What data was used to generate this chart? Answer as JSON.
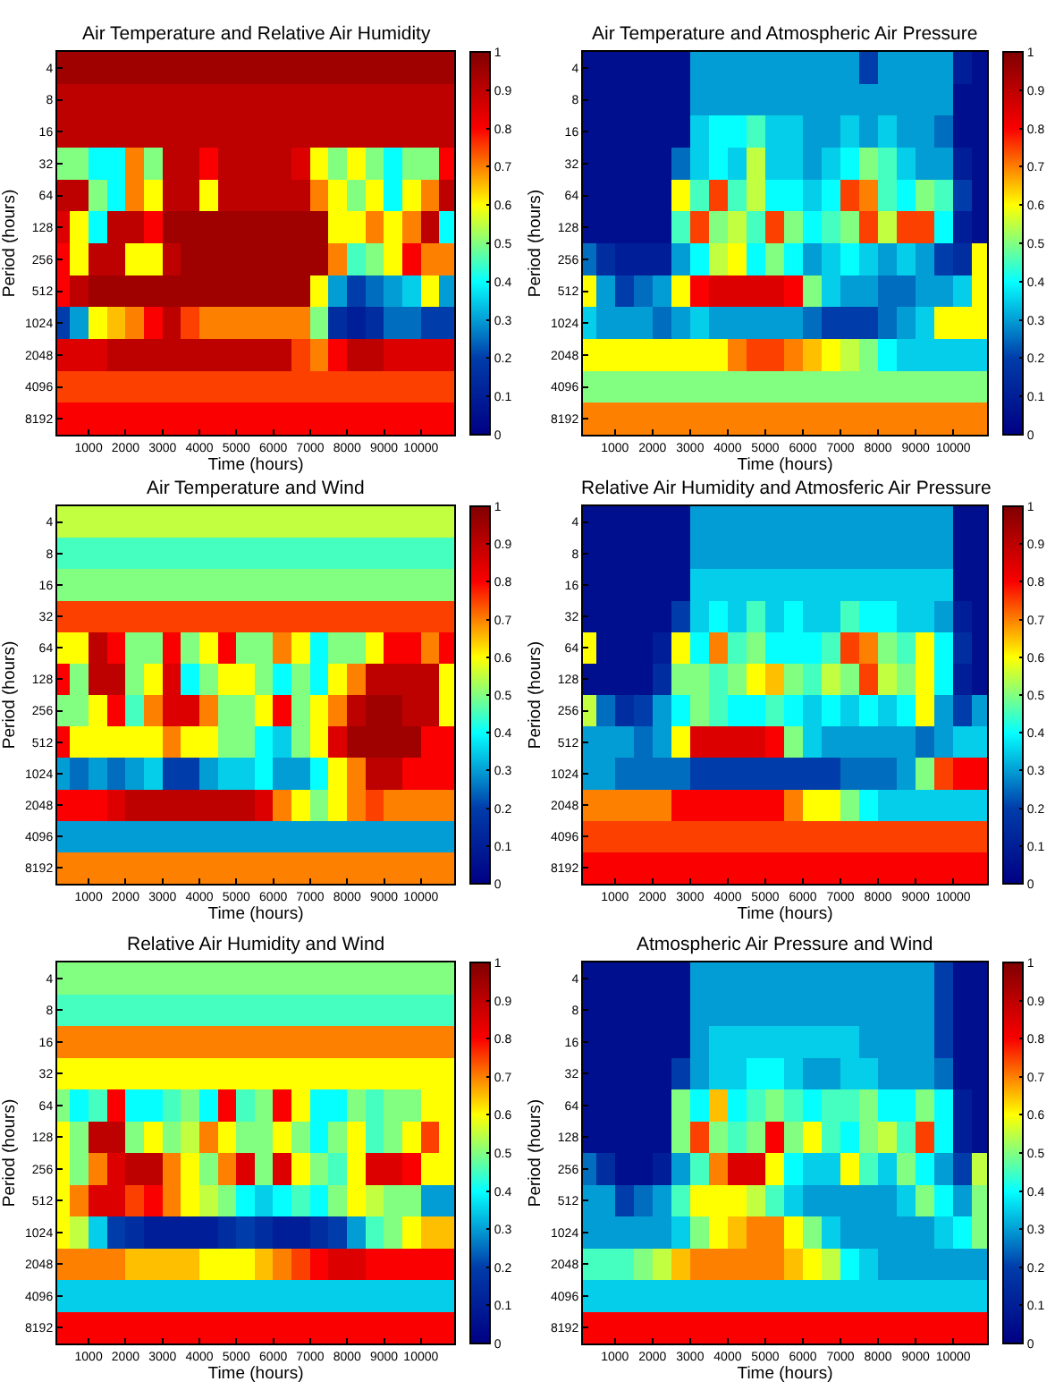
{
  "chart_data": [
    {
      "type": "heatmap",
      "title": "Air Temperature and Relative Air Humidity",
      "xlabel": "Time (hours)",
      "ylabel": "Period (hours)",
      "x": [
        250,
        750,
        1250,
        1750,
        2250,
        2750,
        3250,
        3750,
        4250,
        4750,
        5250,
        5750,
        6250,
        6750,
        7250,
        7750,
        8250,
        8750,
        9250,
        9750,
        10250,
        10750
      ],
      "xlim": [
        150,
        10900
      ],
      "xticks": [
        1000,
        2000,
        3000,
        4000,
        5000,
        6000,
        7000,
        8000,
        9000,
        10000
      ],
      "y_categories": [
        "4",
        "8",
        "16",
        "32",
        "64",
        "128",
        "256",
        "512",
        "1024",
        "2048",
        "4096",
        "8192"
      ],
      "clim": [
        0,
        1
      ],
      "cticks": [
        0,
        0.1,
        0.2,
        0.3,
        0.4,
        0.5,
        0.6,
        0.7,
        0.8,
        0.9,
        1
      ],
      "cells": [
        [
          0.95,
          0.95,
          0.95,
          0.95,
          0.95,
          0.95,
          0.95,
          0.95,
          0.95,
          0.95,
          0.95,
          0.95,
          0.95,
          0.95,
          0.95,
          0.95,
          0.95,
          0.95,
          0.95,
          0.95,
          0.95,
          0.95
        ],
        [
          0.9,
          0.9,
          0.9,
          0.9,
          0.9,
          0.9,
          0.9,
          0.9,
          0.9,
          0.9,
          0.9,
          0.9,
          0.9,
          0.9,
          0.9,
          0.9,
          0.9,
          0.9,
          0.9,
          0.9,
          0.9,
          0.9
        ],
        [
          0.9,
          0.9,
          0.9,
          0.9,
          0.9,
          0.9,
          0.9,
          0.9,
          0.9,
          0.9,
          0.9,
          0.9,
          0.9,
          0.9,
          0.9,
          0.9,
          0.9,
          0.9,
          0.9,
          0.9,
          0.9,
          0.9
        ],
        [
          0.5,
          0.5,
          0.4,
          0.4,
          0.7,
          0.5,
          0.9,
          0.9,
          0.8,
          0.9,
          0.9,
          0.9,
          0.9,
          0.85,
          0.6,
          0.5,
          0.6,
          0.5,
          0.4,
          0.5,
          0.5,
          0.8
        ],
        [
          0.9,
          0.9,
          0.5,
          0.4,
          0.7,
          0.6,
          0.9,
          0.9,
          0.6,
          0.9,
          0.9,
          0.9,
          0.9,
          0.9,
          0.7,
          0.6,
          0.5,
          0.6,
          0.4,
          0.6,
          0.7,
          0.9
        ],
        [
          0.85,
          0.6,
          0.4,
          0.9,
          0.9,
          0.8,
          0.95,
          0.95,
          0.95,
          0.95,
          0.95,
          0.95,
          0.95,
          0.95,
          0.95,
          0.6,
          0.6,
          0.7,
          0.6,
          0.7,
          0.9,
          0.4
        ],
        [
          0.8,
          0.6,
          0.9,
          0.9,
          0.6,
          0.6,
          0.9,
          0.95,
          0.95,
          0.95,
          0.95,
          0.95,
          0.95,
          0.95,
          0.95,
          0.7,
          0.45,
          0.5,
          0.6,
          0.8,
          0.7,
          0.7
        ],
        [
          0.8,
          0.9,
          0.95,
          0.95,
          0.95,
          0.95,
          0.95,
          0.95,
          0.95,
          0.95,
          0.95,
          0.95,
          0.95,
          0.95,
          0.6,
          0.3,
          0.2,
          0.25,
          0.3,
          0.35,
          0.6,
          0.3
        ],
        [
          0.2,
          0.3,
          0.6,
          0.65,
          0.7,
          0.8,
          0.9,
          0.75,
          0.7,
          0.7,
          0.7,
          0.7,
          0.7,
          0.7,
          0.5,
          0.15,
          0.1,
          0.15,
          0.25,
          0.25,
          0.2,
          0.2
        ],
        [
          0.85,
          0.85,
          0.85,
          0.9,
          0.9,
          0.9,
          0.9,
          0.9,
          0.9,
          0.9,
          0.9,
          0.9,
          0.9,
          0.75,
          0.7,
          0.8,
          0.9,
          0.9,
          0.85,
          0.85,
          0.85,
          0.85
        ],
        [
          0.75,
          0.75,
          0.75,
          0.75,
          0.75,
          0.75,
          0.75,
          0.75,
          0.75,
          0.75,
          0.75,
          0.75,
          0.75,
          0.75,
          0.75,
          0.75,
          0.75,
          0.75,
          0.75,
          0.75,
          0.75,
          0.75
        ],
        [
          0.8,
          0.8,
          0.8,
          0.8,
          0.8,
          0.8,
          0.8,
          0.8,
          0.8,
          0.8,
          0.8,
          0.8,
          0.8,
          0.8,
          0.8,
          0.8,
          0.8,
          0.8,
          0.8,
          0.8,
          0.8,
          0.8
        ]
      ]
    },
    {
      "type": "heatmap",
      "title": "Air Temperature and Atmospheric Air Pressure",
      "xlabel": "Time (hours)",
      "ylabel": "Period (hours)",
      "x": [
        250,
        750,
        1250,
        1750,
        2250,
        2750,
        3250,
        3750,
        4250,
        4750,
        5250,
        5750,
        6250,
        6750,
        7250,
        7750,
        8250,
        8750,
        9250,
        9750,
        10250,
        10750
      ],
      "xlim": [
        150,
        10900
      ],
      "xticks": [
        1000,
        2000,
        3000,
        4000,
        5000,
        6000,
        7000,
        8000,
        9000,
        10000
      ],
      "y_categories": [
        "4",
        "8",
        "16",
        "32",
        "64",
        "128",
        "256",
        "512",
        "1024",
        "2048",
        "4096",
        "8192"
      ],
      "clim": [
        0,
        1
      ],
      "cticks": [
        0,
        0.1,
        0.2,
        0.3,
        0.4,
        0.5,
        0.6,
        0.7,
        0.8,
        0.9,
        1
      ],
      "cells": [
        [
          0.05,
          0.05,
          0.05,
          0.05,
          0.05,
          0.05,
          0.3,
          0.3,
          0.3,
          0.3,
          0.3,
          0.3,
          0.3,
          0.3,
          0.3,
          0.2,
          0.3,
          0.3,
          0.3,
          0.3,
          0.1,
          0.05
        ],
        [
          0.05,
          0.05,
          0.05,
          0.05,
          0.05,
          0.05,
          0.3,
          0.3,
          0.3,
          0.3,
          0.3,
          0.3,
          0.3,
          0.3,
          0.3,
          0.3,
          0.3,
          0.3,
          0.3,
          0.3,
          0.05,
          0.05
        ],
        [
          0.05,
          0.05,
          0.05,
          0.05,
          0.05,
          0.05,
          0.35,
          0.4,
          0.4,
          0.45,
          0.35,
          0.35,
          0.3,
          0.3,
          0.35,
          0.3,
          0.35,
          0.3,
          0.3,
          0.25,
          0.05,
          0.05
        ],
        [
          0.05,
          0.05,
          0.05,
          0.05,
          0.05,
          0.25,
          0.35,
          0.4,
          0.35,
          0.55,
          0.35,
          0.35,
          0.3,
          0.35,
          0.4,
          0.5,
          0.45,
          0.35,
          0.3,
          0.3,
          0.1,
          0.05
        ],
        [
          0.05,
          0.05,
          0.05,
          0.05,
          0.05,
          0.6,
          0.45,
          0.75,
          0.45,
          0.55,
          0.4,
          0.4,
          0.35,
          0.4,
          0.75,
          0.7,
          0.45,
          0.4,
          0.5,
          0.45,
          0.2,
          0.05
        ],
        [
          0.05,
          0.05,
          0.05,
          0.05,
          0.05,
          0.45,
          0.75,
          0.5,
          0.55,
          0.45,
          0.75,
          0.5,
          0.4,
          0.45,
          0.5,
          0.75,
          0.55,
          0.75,
          0.75,
          0.4,
          0.1,
          0.05
        ],
        [
          0.25,
          0.15,
          0.1,
          0.1,
          0.1,
          0.3,
          0.4,
          0.55,
          0.6,
          0.4,
          0.5,
          0.4,
          0.3,
          0.35,
          0.4,
          0.35,
          0.3,
          0.35,
          0.3,
          0.2,
          0.15,
          0.6
        ],
        [
          0.6,
          0.3,
          0.2,
          0.25,
          0.3,
          0.6,
          0.8,
          0.85,
          0.85,
          0.85,
          0.85,
          0.8,
          0.5,
          0.35,
          0.3,
          0.3,
          0.25,
          0.25,
          0.3,
          0.3,
          0.35,
          0.6
        ],
        [
          0.35,
          0.3,
          0.3,
          0.3,
          0.25,
          0.3,
          0.35,
          0.3,
          0.3,
          0.3,
          0.3,
          0.3,
          0.25,
          0.2,
          0.2,
          0.2,
          0.25,
          0.3,
          0.35,
          0.6,
          0.6,
          0.6
        ],
        [
          0.6,
          0.6,
          0.6,
          0.6,
          0.6,
          0.6,
          0.6,
          0.6,
          0.7,
          0.75,
          0.75,
          0.7,
          0.65,
          0.6,
          0.55,
          0.5,
          0.4,
          0.35,
          0.35,
          0.35,
          0.35,
          0.35
        ],
        [
          0.5,
          0.5,
          0.5,
          0.5,
          0.5,
          0.5,
          0.5,
          0.5,
          0.5,
          0.5,
          0.5,
          0.5,
          0.5,
          0.5,
          0.5,
          0.5,
          0.5,
          0.5,
          0.5,
          0.5,
          0.5,
          0.5
        ],
        [
          0.7,
          0.7,
          0.7,
          0.7,
          0.7,
          0.7,
          0.7,
          0.7,
          0.7,
          0.7,
          0.7,
          0.7,
          0.7,
          0.7,
          0.7,
          0.7,
          0.7,
          0.7,
          0.7,
          0.7,
          0.7,
          0.7
        ]
      ]
    },
    {
      "type": "heatmap",
      "title": "Air Temperature and Wind",
      "xlabel": "Time (hours)",
      "ylabel": "Period (hours)",
      "x": [
        250,
        750,
        1250,
        1750,
        2250,
        2750,
        3250,
        3750,
        4250,
        4750,
        5250,
        5750,
        6250,
        6750,
        7250,
        7750,
        8250,
        8750,
        9250,
        9750,
        10250,
        10750
      ],
      "xlim": [
        150,
        10900
      ],
      "xticks": [
        1000,
        2000,
        3000,
        4000,
        5000,
        6000,
        7000,
        8000,
        9000,
        10000
      ],
      "y_categories": [
        "4",
        "8",
        "16",
        "32",
        "64",
        "128",
        "256",
        "512",
        "1024",
        "2048",
        "4096",
        "8192"
      ],
      "clim": [
        0,
        1
      ],
      "cticks": [
        0,
        0.1,
        0.2,
        0.3,
        0.4,
        0.5,
        0.6,
        0.7,
        0.8,
        0.9,
        1
      ],
      "cells": [
        [
          0.55,
          0.55,
          0.55,
          0.55,
          0.55,
          0.55,
          0.55,
          0.55,
          0.55,
          0.55,
          0.55,
          0.55,
          0.55,
          0.55,
          0.55,
          0.55,
          0.55,
          0.55,
          0.55,
          0.55,
          0.55,
          0.55
        ],
        [
          0.45,
          0.45,
          0.45,
          0.45,
          0.45,
          0.45,
          0.45,
          0.45,
          0.45,
          0.45,
          0.45,
          0.45,
          0.45,
          0.45,
          0.45,
          0.45,
          0.45,
          0.45,
          0.45,
          0.45,
          0.45,
          0.45
        ],
        [
          0.5,
          0.5,
          0.5,
          0.5,
          0.5,
          0.5,
          0.5,
          0.5,
          0.5,
          0.5,
          0.5,
          0.5,
          0.5,
          0.5,
          0.5,
          0.5,
          0.5,
          0.5,
          0.5,
          0.5,
          0.5,
          0.5
        ],
        [
          0.75,
          0.75,
          0.75,
          0.75,
          0.75,
          0.75,
          0.75,
          0.75,
          0.75,
          0.75,
          0.75,
          0.75,
          0.75,
          0.75,
          0.75,
          0.75,
          0.75,
          0.75,
          0.75,
          0.75,
          0.75,
          0.75
        ],
        [
          0.6,
          0.6,
          0.9,
          0.8,
          0.5,
          0.5,
          0.8,
          0.5,
          0.6,
          0.8,
          0.5,
          0.5,
          0.7,
          0.6,
          0.4,
          0.5,
          0.5,
          0.6,
          0.8,
          0.8,
          0.7,
          0.8
        ],
        [
          0.8,
          0.5,
          0.9,
          0.9,
          0.5,
          0.6,
          0.85,
          0.4,
          0.5,
          0.6,
          0.6,
          0.5,
          0.4,
          0.5,
          0.4,
          0.6,
          0.7,
          0.9,
          0.9,
          0.9,
          0.9,
          0.6
        ],
        [
          0.5,
          0.5,
          0.6,
          0.8,
          0.45,
          0.7,
          0.85,
          0.85,
          0.7,
          0.5,
          0.5,
          0.6,
          0.8,
          0.5,
          0.6,
          0.7,
          0.9,
          0.95,
          0.95,
          0.9,
          0.9,
          0.6
        ],
        [
          0.8,
          0.6,
          0.6,
          0.6,
          0.6,
          0.6,
          0.7,
          0.6,
          0.6,
          0.5,
          0.5,
          0.4,
          0.35,
          0.5,
          0.6,
          0.85,
          0.95,
          0.95,
          0.95,
          0.95,
          0.8,
          0.8
        ],
        [
          0.3,
          0.25,
          0.3,
          0.25,
          0.3,
          0.35,
          0.2,
          0.2,
          0.3,
          0.35,
          0.35,
          0.4,
          0.3,
          0.3,
          0.4,
          0.6,
          0.7,
          0.9,
          0.9,
          0.8,
          0.8,
          0.8
        ],
        [
          0.8,
          0.8,
          0.8,
          0.85,
          0.9,
          0.9,
          0.9,
          0.9,
          0.9,
          0.9,
          0.9,
          0.85,
          0.7,
          0.6,
          0.5,
          0.6,
          0.7,
          0.75,
          0.7,
          0.7,
          0.7,
          0.7
        ],
        [
          0.3,
          0.3,
          0.3,
          0.3,
          0.3,
          0.3,
          0.3,
          0.3,
          0.3,
          0.3,
          0.3,
          0.3,
          0.3,
          0.3,
          0.3,
          0.3,
          0.3,
          0.3,
          0.3,
          0.3,
          0.3,
          0.3
        ],
        [
          0.7,
          0.7,
          0.7,
          0.7,
          0.7,
          0.7,
          0.7,
          0.7,
          0.7,
          0.7,
          0.7,
          0.7,
          0.7,
          0.7,
          0.7,
          0.7,
          0.7,
          0.7,
          0.7,
          0.7,
          0.7,
          0.7
        ]
      ]
    },
    {
      "type": "heatmap",
      "title": "Relative Air Humidity and Atmosferic Air Pressure",
      "xlabel": "Time (hours)",
      "ylabel": "Period (hours)",
      "x": [
        250,
        750,
        1250,
        1750,
        2250,
        2750,
        3250,
        3750,
        4250,
        4750,
        5250,
        5750,
        6250,
        6750,
        7250,
        7750,
        8250,
        8750,
        9250,
        9750,
        10250,
        10750
      ],
      "xlim": [
        150,
        10900
      ],
      "xticks": [
        1000,
        2000,
        3000,
        4000,
        5000,
        6000,
        7000,
        8000,
        9000,
        10000
      ],
      "y_categories": [
        "4",
        "8",
        "16",
        "32",
        "64",
        "128",
        "256",
        "512",
        "1024",
        "2048",
        "4096",
        "8192"
      ],
      "clim": [
        0,
        1
      ],
      "cticks": [
        0,
        0.1,
        0.2,
        0.3,
        0.4,
        0.5,
        0.6,
        0.7,
        0.8,
        0.9,
        1
      ],
      "cells": [
        [
          0.05,
          0.05,
          0.05,
          0.05,
          0.05,
          0.05,
          0.3,
          0.3,
          0.3,
          0.3,
          0.3,
          0.3,
          0.3,
          0.3,
          0.3,
          0.3,
          0.3,
          0.3,
          0.3,
          0.3,
          0.05,
          0.05
        ],
        [
          0.05,
          0.05,
          0.05,
          0.05,
          0.05,
          0.05,
          0.3,
          0.3,
          0.3,
          0.3,
          0.3,
          0.3,
          0.3,
          0.3,
          0.3,
          0.3,
          0.3,
          0.3,
          0.3,
          0.3,
          0.05,
          0.05
        ],
        [
          0.05,
          0.05,
          0.05,
          0.05,
          0.05,
          0.05,
          0.35,
          0.35,
          0.35,
          0.35,
          0.35,
          0.35,
          0.35,
          0.35,
          0.35,
          0.35,
          0.35,
          0.35,
          0.35,
          0.35,
          0.05,
          0.05
        ],
        [
          0.05,
          0.05,
          0.05,
          0.05,
          0.05,
          0.2,
          0.35,
          0.4,
          0.35,
          0.45,
          0.35,
          0.4,
          0.35,
          0.35,
          0.45,
          0.4,
          0.4,
          0.35,
          0.35,
          0.3,
          0.1,
          0.05
        ],
        [
          0.6,
          0.05,
          0.05,
          0.05,
          0.1,
          0.6,
          0.4,
          0.7,
          0.45,
          0.5,
          0.4,
          0.4,
          0.4,
          0.45,
          0.75,
          0.7,
          0.5,
          0.45,
          0.6,
          0.4,
          0.15,
          0.05
        ],
        [
          0.05,
          0.05,
          0.05,
          0.05,
          0.15,
          0.5,
          0.5,
          0.45,
          0.5,
          0.6,
          0.65,
          0.5,
          0.45,
          0.55,
          0.5,
          0.75,
          0.55,
          0.5,
          0.6,
          0.4,
          0.1,
          0.05
        ],
        [
          0.55,
          0.25,
          0.15,
          0.2,
          0.3,
          0.4,
          0.5,
          0.45,
          0.4,
          0.4,
          0.45,
          0.4,
          0.35,
          0.4,
          0.35,
          0.4,
          0.35,
          0.4,
          0.6,
          0.3,
          0.2,
          0.3
        ],
        [
          0.3,
          0.3,
          0.3,
          0.25,
          0.3,
          0.6,
          0.85,
          0.85,
          0.85,
          0.85,
          0.8,
          0.5,
          0.35,
          0.3,
          0.3,
          0.3,
          0.3,
          0.3,
          0.25,
          0.3,
          0.35,
          0.35
        ],
        [
          0.3,
          0.3,
          0.25,
          0.25,
          0.25,
          0.25,
          0.2,
          0.2,
          0.2,
          0.2,
          0.2,
          0.2,
          0.2,
          0.2,
          0.25,
          0.25,
          0.25,
          0.3,
          0.5,
          0.75,
          0.8,
          0.8
        ],
        [
          0.7,
          0.7,
          0.7,
          0.7,
          0.7,
          0.8,
          0.8,
          0.8,
          0.8,
          0.8,
          0.8,
          0.7,
          0.6,
          0.6,
          0.5,
          0.4,
          0.35,
          0.35,
          0.35,
          0.35,
          0.35,
          0.35
        ],
        [
          0.75,
          0.75,
          0.75,
          0.75,
          0.75,
          0.75,
          0.75,
          0.75,
          0.75,
          0.75,
          0.75,
          0.75,
          0.75,
          0.75,
          0.75,
          0.75,
          0.75,
          0.75,
          0.75,
          0.75,
          0.75,
          0.75
        ],
        [
          0.8,
          0.8,
          0.8,
          0.8,
          0.8,
          0.8,
          0.8,
          0.8,
          0.8,
          0.8,
          0.8,
          0.8,
          0.8,
          0.8,
          0.8,
          0.8,
          0.8,
          0.8,
          0.8,
          0.8,
          0.8,
          0.8
        ]
      ]
    },
    {
      "type": "heatmap",
      "title": "Relative Air Humidity and Wind",
      "xlabel": "Time (hours)",
      "ylabel": "Period (hours)",
      "x": [
        250,
        750,
        1250,
        1750,
        2250,
        2750,
        3250,
        3750,
        4250,
        4750,
        5250,
        5750,
        6250,
        6750,
        7250,
        7750,
        8250,
        8750,
        9250,
        9750,
        10250,
        10750
      ],
      "xlim": [
        150,
        10900
      ],
      "xticks": [
        1000,
        2000,
        3000,
        4000,
        5000,
        6000,
        7000,
        8000,
        9000,
        10000
      ],
      "y_categories": [
        "4",
        "8",
        "16",
        "32",
        "64",
        "128",
        "256",
        "512",
        "1024",
        "2048",
        "4096",
        "8192"
      ],
      "clim": [
        0,
        1
      ],
      "cticks": [
        0,
        0.1,
        0.2,
        0.3,
        0.4,
        0.5,
        0.6,
        0.7,
        0.8,
        0.9,
        1
      ],
      "cells": [
        [
          0.5,
          0.5,
          0.5,
          0.5,
          0.5,
          0.5,
          0.5,
          0.5,
          0.5,
          0.5,
          0.5,
          0.5,
          0.5,
          0.5,
          0.5,
          0.5,
          0.5,
          0.5,
          0.5,
          0.5,
          0.5,
          0.5
        ],
        [
          0.45,
          0.45,
          0.45,
          0.45,
          0.45,
          0.45,
          0.45,
          0.45,
          0.45,
          0.45,
          0.45,
          0.45,
          0.45,
          0.45,
          0.45,
          0.45,
          0.45,
          0.45,
          0.45,
          0.45,
          0.45,
          0.45
        ],
        [
          0.7,
          0.7,
          0.7,
          0.7,
          0.7,
          0.7,
          0.7,
          0.7,
          0.7,
          0.7,
          0.7,
          0.7,
          0.7,
          0.7,
          0.7,
          0.7,
          0.7,
          0.7,
          0.7,
          0.7,
          0.7,
          0.7
        ],
        [
          0.6,
          0.6,
          0.6,
          0.6,
          0.6,
          0.6,
          0.6,
          0.6,
          0.6,
          0.6,
          0.6,
          0.6,
          0.6,
          0.6,
          0.6,
          0.6,
          0.6,
          0.6,
          0.6,
          0.6,
          0.6,
          0.6
        ],
        [
          0.5,
          0.4,
          0.45,
          0.8,
          0.4,
          0.4,
          0.45,
          0.5,
          0.4,
          0.8,
          0.45,
          0.5,
          0.8,
          0.6,
          0.4,
          0.4,
          0.5,
          0.45,
          0.5,
          0.5,
          0.6,
          0.6
        ],
        [
          0.6,
          0.5,
          0.9,
          0.9,
          0.5,
          0.6,
          0.5,
          0.55,
          0.7,
          0.6,
          0.5,
          0.5,
          0.6,
          0.5,
          0.4,
          0.5,
          0.6,
          0.45,
          0.5,
          0.6,
          0.75,
          0.6
        ],
        [
          0.6,
          0.5,
          0.7,
          0.85,
          0.9,
          0.9,
          0.7,
          0.6,
          0.5,
          0.7,
          0.85,
          0.5,
          0.85,
          0.6,
          0.5,
          0.45,
          0.6,
          0.85,
          0.85,
          0.8,
          0.6,
          0.6
        ],
        [
          0.6,
          0.7,
          0.85,
          0.85,
          0.75,
          0.8,
          0.7,
          0.6,
          0.55,
          0.5,
          0.4,
          0.35,
          0.4,
          0.45,
          0.4,
          0.5,
          0.6,
          0.55,
          0.5,
          0.5,
          0.3,
          0.3
        ],
        [
          0.6,
          0.55,
          0.35,
          0.2,
          0.15,
          0.1,
          0.1,
          0.1,
          0.1,
          0.15,
          0.2,
          0.15,
          0.1,
          0.1,
          0.15,
          0.2,
          0.3,
          0.45,
          0.5,
          0.6,
          0.65,
          0.65
        ],
        [
          0.7,
          0.7,
          0.7,
          0.7,
          0.65,
          0.65,
          0.65,
          0.65,
          0.6,
          0.6,
          0.6,
          0.65,
          0.7,
          0.75,
          0.8,
          0.85,
          0.85,
          0.8,
          0.8,
          0.8,
          0.8,
          0.8
        ],
        [
          0.35,
          0.35,
          0.35,
          0.35,
          0.35,
          0.35,
          0.35,
          0.35,
          0.35,
          0.35,
          0.35,
          0.35,
          0.35,
          0.35,
          0.35,
          0.35,
          0.35,
          0.35,
          0.35,
          0.35,
          0.35,
          0.35
        ],
        [
          0.8,
          0.8,
          0.8,
          0.8,
          0.8,
          0.8,
          0.8,
          0.8,
          0.8,
          0.8,
          0.8,
          0.8,
          0.8,
          0.8,
          0.8,
          0.8,
          0.8,
          0.8,
          0.8,
          0.8,
          0.8,
          0.8
        ]
      ]
    },
    {
      "type": "heatmap",
      "title": "Atmospheric Air Pressure and Wind",
      "xlabel": "Time (hours)",
      "ylabel": "Period (hours)",
      "x": [
        250,
        750,
        1250,
        1750,
        2250,
        2750,
        3250,
        3750,
        4250,
        4750,
        5250,
        5750,
        6250,
        6750,
        7250,
        7750,
        8250,
        8750,
        9250,
        9750,
        10250,
        10750
      ],
      "xlim": [
        150,
        10900
      ],
      "xticks": [
        1000,
        2000,
        3000,
        4000,
        5000,
        6000,
        7000,
        8000,
        9000,
        10000
      ],
      "y_categories": [
        "4",
        "8",
        "16",
        "32",
        "64",
        "128",
        "256",
        "512",
        "1024",
        "2048",
        "4096",
        "8192"
      ],
      "clim": [
        0,
        1
      ],
      "cticks": [
        0,
        0.1,
        0.2,
        0.3,
        0.4,
        0.5,
        0.6,
        0.7,
        0.8,
        0.9,
        1
      ],
      "cells": [
        [
          0.05,
          0.05,
          0.05,
          0.05,
          0.05,
          0.05,
          0.3,
          0.3,
          0.3,
          0.3,
          0.3,
          0.3,
          0.3,
          0.3,
          0.3,
          0.3,
          0.3,
          0.3,
          0.3,
          0.2,
          0.05,
          0.05
        ],
        [
          0.05,
          0.05,
          0.05,
          0.05,
          0.05,
          0.05,
          0.3,
          0.3,
          0.3,
          0.3,
          0.3,
          0.3,
          0.3,
          0.3,
          0.3,
          0.3,
          0.3,
          0.3,
          0.3,
          0.2,
          0.05,
          0.05
        ],
        [
          0.05,
          0.05,
          0.05,
          0.05,
          0.05,
          0.05,
          0.3,
          0.35,
          0.35,
          0.35,
          0.35,
          0.35,
          0.35,
          0.35,
          0.35,
          0.3,
          0.3,
          0.3,
          0.3,
          0.2,
          0.05,
          0.05
        ],
        [
          0.05,
          0.05,
          0.05,
          0.05,
          0.05,
          0.2,
          0.3,
          0.35,
          0.35,
          0.4,
          0.4,
          0.35,
          0.3,
          0.3,
          0.35,
          0.35,
          0.3,
          0.3,
          0.3,
          0.25,
          0.05,
          0.05
        ],
        [
          0.05,
          0.05,
          0.05,
          0.05,
          0.05,
          0.5,
          0.4,
          0.65,
          0.4,
          0.45,
          0.5,
          0.45,
          0.4,
          0.45,
          0.45,
          0.5,
          0.4,
          0.4,
          0.5,
          0.4,
          0.1,
          0.05
        ],
        [
          0.05,
          0.05,
          0.05,
          0.05,
          0.05,
          0.5,
          0.75,
          0.5,
          0.45,
          0.5,
          0.8,
          0.5,
          0.6,
          0.45,
          0.4,
          0.5,
          0.55,
          0.45,
          0.75,
          0.4,
          0.1,
          0.05
        ],
        [
          0.25,
          0.15,
          0.05,
          0.05,
          0.1,
          0.3,
          0.45,
          0.7,
          0.85,
          0.85,
          0.6,
          0.4,
          0.35,
          0.35,
          0.6,
          0.45,
          0.35,
          0.5,
          0.4,
          0.3,
          0.2,
          0.55
        ],
        [
          0.3,
          0.3,
          0.2,
          0.25,
          0.3,
          0.45,
          0.6,
          0.6,
          0.6,
          0.55,
          0.45,
          0.35,
          0.3,
          0.3,
          0.3,
          0.3,
          0.3,
          0.35,
          0.5,
          0.4,
          0.3,
          0.5
        ],
        [
          0.3,
          0.3,
          0.3,
          0.3,
          0.3,
          0.35,
          0.5,
          0.6,
          0.65,
          0.7,
          0.7,
          0.6,
          0.5,
          0.35,
          0.3,
          0.3,
          0.3,
          0.3,
          0.3,
          0.35,
          0.4,
          0.5
        ],
        [
          0.45,
          0.45,
          0.45,
          0.5,
          0.55,
          0.65,
          0.7,
          0.7,
          0.7,
          0.7,
          0.7,
          0.65,
          0.6,
          0.55,
          0.4,
          0.35,
          0.3,
          0.3,
          0.3,
          0.3,
          0.3,
          0.3
        ],
        [
          0.35,
          0.35,
          0.35,
          0.35,
          0.35,
          0.35,
          0.35,
          0.35,
          0.35,
          0.35,
          0.35,
          0.35,
          0.35,
          0.35,
          0.35,
          0.35,
          0.35,
          0.35,
          0.35,
          0.35,
          0.35,
          0.35
        ],
        [
          0.8,
          0.8,
          0.8,
          0.8,
          0.8,
          0.8,
          0.8,
          0.8,
          0.8,
          0.8,
          0.8,
          0.8,
          0.8,
          0.8,
          0.8,
          0.8,
          0.8,
          0.8,
          0.8,
          0.8,
          0.8,
          0.8
        ]
      ]
    }
  ]
}
